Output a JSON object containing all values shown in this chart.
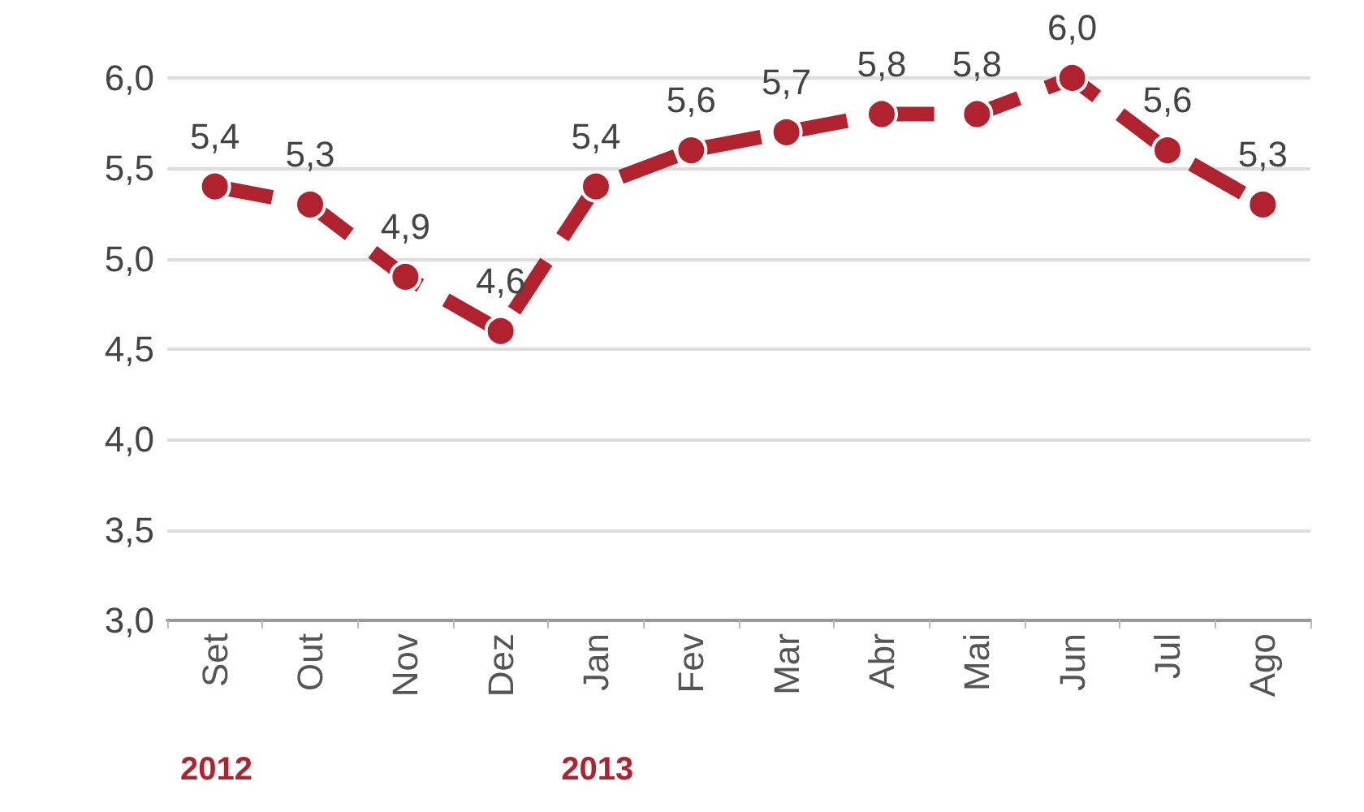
{
  "chart_data": {
    "type": "line",
    "categories": [
      "Set",
      "Out",
      "Nov",
      "Dez",
      "Jan",
      "Fev",
      "Mar",
      "Abr",
      "Mai",
      "Jun",
      "Jul",
      "Ago"
    ],
    "series": [
      {
        "color": "#b0232e",
        "values": [
          5.4,
          5.3,
          4.9,
          4.6,
          5.4,
          5.6,
          5.7,
          5.8,
          5.8,
          6.0,
          5.6,
          5.3
        ],
        "value_labels": [
          "5,4",
          "5,3",
          "4,9",
          "4,6",
          "5,4",
          "5,6",
          "5,7",
          "5,8",
          "5,8",
          "6,0",
          "5,6",
          "5,3"
        ]
      }
    ],
    "ylim": [
      3,
      6
    ],
    "yticks": [
      {
        "value": 3,
        "label": "3,0"
      },
      {
        "value": 3.5,
        "label": "3,5"
      },
      {
        "value": 4,
        "label": "4,0"
      },
      {
        "value": 4.5,
        "label": "4,5"
      },
      {
        "value": 5,
        "label": "5,0"
      },
      {
        "value": 5.5,
        "label": "5,5"
      },
      {
        "value": 6,
        "label": "6,0"
      }
    ],
    "annotations": [
      "2012",
      "2013"
    ],
    "grid": "y",
    "marker": "circle",
    "line_style": "dashed"
  }
}
